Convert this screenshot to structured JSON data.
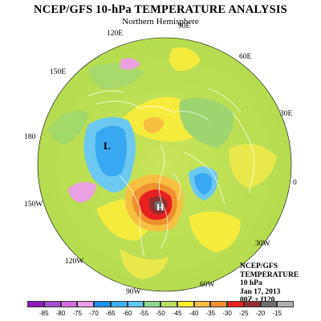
{
  "title": "NCEP/GFS 10-hPa TEMPERATURE ANALYSIS",
  "subtitle": "Northern Hemisphere",
  "longitude_labels": {
    "e120": "120E",
    "e90": "90E",
    "e60": "60E",
    "e150": "150E",
    "e30": "30E",
    "lon180": "180",
    "lon0": "0",
    "w150": "150W",
    "w30": "30W",
    "w120": "120W",
    "w60": "60W",
    "w90": "90W"
  },
  "low_marker": "L",
  "high_marker": "H",
  "info": {
    "line1": "NCEP/GFS",
    "line2": "TEMPERATURE",
    "line3": "10 hPa",
    "line4": "Jan 17, 2013",
    "line5": "00Z + f120"
  },
  "legend": {
    "ticks": [
      "-85",
      "-80",
      "-75",
      "-70",
      "-65",
      "-60",
      "-55",
      "-50",
      "-45",
      "-40",
      "-35",
      "-30",
      "-25",
      "-20",
      "-15"
    ],
    "colors": [
      "#8b20b8",
      "#a050d0",
      "#d070e0",
      "#e8a0e8",
      "#1e90ff",
      "#3ab0f0",
      "#60c8f0",
      "#90d890",
      "#b8e060",
      "#ffee30",
      "#f8c040",
      "#f09030",
      "#e82020",
      "#903030",
      "#707070",
      "#b0b0b0"
    ]
  }
}
